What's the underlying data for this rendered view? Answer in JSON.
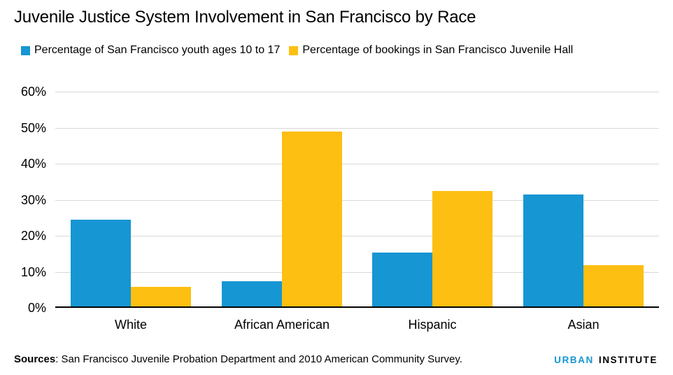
{
  "title": "Juvenile Justice System Involvement in San Francisco by Race",
  "legend": [
    {
      "label": "Percentage of San Francisco youth ages 10 to 17",
      "color": "#1696d2"
    },
    {
      "label": "Percentage of bookings in San Francisco Juvenile Hall",
      "color": "#fdbf11"
    }
  ],
  "chart_data": {
    "type": "bar",
    "categories": [
      "White",
      "African American",
      "Hispanic",
      "Asian"
    ],
    "series": [
      {
        "name": "Percentage of San Francisco youth ages 10 to 17",
        "color": "#1696d2",
        "values": [
          24,
          7,
          15,
          31
        ]
      },
      {
        "name": "Percentage of bookings in San Francisco Juvenile Hall",
        "color": "#fdbf11",
        "values": [
          5.5,
          48.5,
          32,
          11.5
        ]
      }
    ],
    "title": "Juvenile Justice System Involvement in San Francisco by Race",
    "xlabel": "",
    "ylabel": "",
    "ylim": [
      0,
      60
    ],
    "y_ticks": [
      0,
      10,
      20,
      30,
      40,
      50,
      60
    ],
    "y_tick_labels": [
      "0%",
      "10%",
      "20%",
      "30%",
      "40%",
      "50%",
      "60%"
    ],
    "grid": true,
    "legend_position": "top-left"
  },
  "footer": {
    "sources_label": "Sources",
    "sources_text": ": San Francisco Juvenile Probation Department and 2010 American Community Survey.",
    "logo": {
      "part1": "URBAN",
      "part2": "INSTITUTE"
    }
  },
  "colors": {
    "series1_blue": "#1696d2",
    "series2_yellow": "#fdbf11",
    "gridline": "#d9d9d9",
    "axis": "#000000",
    "logo_urban": "#1696d2",
    "logo_institute": "#000000",
    "background": "#ffffff",
    "text": "#000000"
  }
}
